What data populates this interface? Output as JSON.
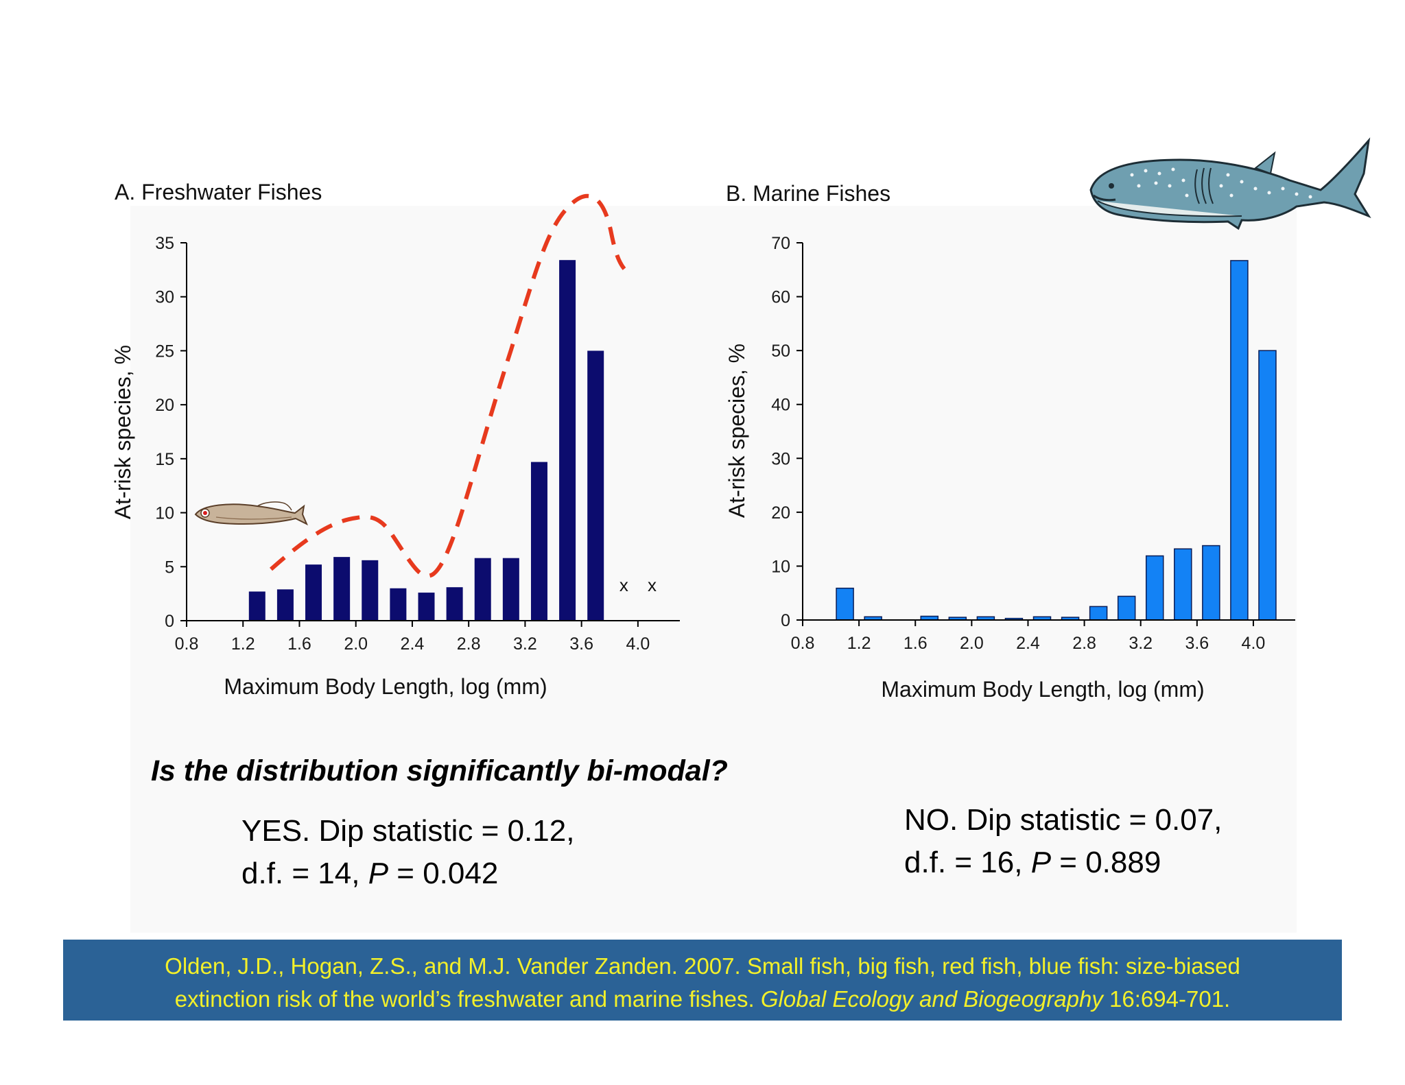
{
  "chart_data": [
    {
      "type": "bar",
      "title": "A. Freshwater Fishes",
      "xlabel": "Maximum Body Length, log (mm)",
      "ylabel": "At-risk species, %",
      "xlim": [
        0.8,
        4.2
      ],
      "ylim": [
        0,
        35
      ],
      "xticks": [
        "0.8",
        "1.2",
        "1.6",
        "2.0",
        "2.4",
        "2.8",
        "3.2",
        "3.6",
        "4.0"
      ],
      "yticks": [
        "0",
        "5",
        "10",
        "15",
        "20",
        "25",
        "30",
        "35"
      ],
      "x": [
        1.3,
        1.5,
        1.7,
        1.9,
        2.1,
        2.3,
        2.5,
        2.7,
        2.9,
        3.1,
        3.3,
        3.5,
        3.7
      ],
      "values": [
        2.7,
        2.9,
        5.2,
        5.9,
        5.6,
        3.0,
        2.6,
        3.1,
        5.8,
        5.8,
        14.7,
        33.4,
        25.0
      ],
      "markers": {
        "text": "x",
        "x": [
          3.9,
          4.1
        ]
      },
      "color": "#0c0c6e",
      "fitted_curve_color": "#e73a1e"
    },
    {
      "type": "bar",
      "title": "B. Marine Fishes",
      "xlabel": "Maximum Body Length, log (mm)",
      "ylabel": "At-risk species, %",
      "xlim": [
        0.8,
        4.2
      ],
      "ylim": [
        0,
        70
      ],
      "xticks": [
        "0.8",
        "1.2",
        "1.6",
        "2.0",
        "2.4",
        "2.8",
        "3.2",
        "3.6",
        "4.0"
      ],
      "yticks": [
        "0",
        "10",
        "20",
        "30",
        "40",
        "50",
        "60",
        "70"
      ],
      "x": [
        1.1,
        1.3,
        1.5,
        1.7,
        1.9,
        2.1,
        2.3,
        2.5,
        2.7,
        2.9,
        3.1,
        3.3,
        3.5,
        3.7,
        3.9,
        4.1
      ],
      "values": [
        5.9,
        0.6,
        0.0,
        0.7,
        0.5,
        0.6,
        0.3,
        0.6,
        0.5,
        2.5,
        4.4,
        11.9,
        13.2,
        13.8,
        66.7,
        50.0
      ],
      "color": "#1382f5"
    }
  ],
  "question": "Is the distribution significantly bi-modal?",
  "results": {
    "freshwater": {
      "line1": "YES. Dip statistic = 0.12,",
      "line2_pre": "d.f. = 14, ",
      "p_symbol": "P",
      "line2_post": " = 0.042"
    },
    "marine": {
      "line1": "NO. Dip statistic = 0.07,",
      "line2_pre": "d.f. = 16, ",
      "p_symbol": "P",
      "line2_post": " = 0.889"
    }
  },
  "citation": {
    "line1": "Olden, J.D., Hogan, Z.S., and M.J. Vander Zanden. 2007. Small fish, big fish, red fish, blue fish: size-biased",
    "line2_pre": "extinction risk of the world’s freshwater and marine fishes. ",
    "journal": "Global Ecology and Biogeography",
    "line2_post": " 16:694-701."
  }
}
